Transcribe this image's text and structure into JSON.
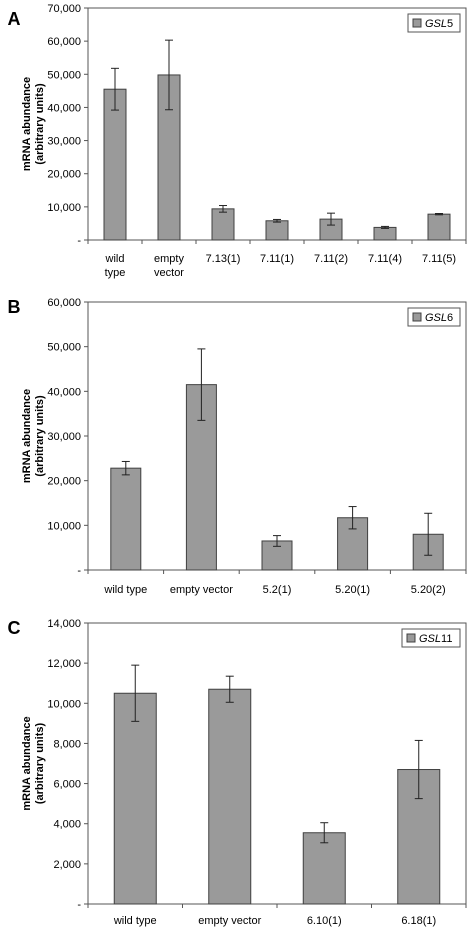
{
  "chart_data": [
    {
      "panel_label": "A",
      "type": "bar",
      "ylabel": [
        "mRNA abundance",
        "(arbitrary units)"
      ],
      "ylim": [
        0,
        70000
      ],
      "yticks": [
        0,
        10000,
        20000,
        30000,
        40000,
        50000,
        60000,
        70000
      ],
      "ytick_labels": [
        "-",
        "10,000",
        "20,000",
        "30,000",
        "40,000",
        "50,000",
        "60,000",
        "70,000"
      ],
      "categories": [
        "wild type",
        "empty vector",
        "7.13(1)",
        "7.11(1)",
        "7.11(2)",
        "7.11(4)",
        "7.11(5)"
      ],
      "series": [
        {
          "name": "GSL5",
          "values": [
            45500,
            49800,
            9400,
            5800,
            6300,
            3800,
            7800
          ],
          "errors": [
            6300,
            10500,
            1000,
            400,
            1800,
            300,
            200
          ]
        }
      ],
      "legend": {
        "italic": "GSL",
        "rest": "5",
        "position": "top-right"
      },
      "grid": false
    },
    {
      "panel_label": "B",
      "type": "bar",
      "ylabel": [
        "mRNA abundance",
        "(arbitrary units)"
      ],
      "ylim": [
        0,
        60000
      ],
      "yticks": [
        0,
        10000,
        20000,
        30000,
        40000,
        50000,
        60000
      ],
      "ytick_labels": [
        "-",
        "10,000",
        "20,000",
        "30,000",
        "40,000",
        "50,000",
        "60,000"
      ],
      "categories": [
        "wild type",
        "empty vector",
        "5.2(1)",
        "5.20(1)",
        "5.20(2)"
      ],
      "series": [
        {
          "name": "GSL6",
          "values": [
            22800,
            41500,
            6500,
            11700,
            8000
          ],
          "errors": [
            1500,
            8000,
            1200,
            2500,
            4700
          ]
        }
      ],
      "legend": {
        "italic": "GSL",
        "rest": "6",
        "position": "top-right"
      },
      "grid": false
    },
    {
      "panel_label": "C",
      "type": "bar",
      "ylabel": [
        "mRNA abundance",
        "(arbitrary units)"
      ],
      "ylim": [
        0,
        14000
      ],
      "yticks": [
        0,
        2000,
        4000,
        6000,
        8000,
        10000,
        12000,
        14000
      ],
      "ytick_labels": [
        "-",
        "2,000",
        "4,000",
        "6,000",
        "8,000",
        "10,000",
        "12,000",
        "14,000"
      ],
      "categories": [
        "wild type",
        "empty vector",
        "6.10(1)",
        "6.18(1)"
      ],
      "series": [
        {
          "name": "GSL11",
          "values": [
            10500,
            10700,
            3550,
            6700
          ],
          "errors": [
            1400,
            650,
            500,
            1450
          ]
        }
      ],
      "legend": {
        "italic": "GSL",
        "rest": "11",
        "position": "top-right"
      },
      "grid": false
    }
  ],
  "colors": {
    "bar_fill": "#9a9a9a",
    "bar_stroke": "#404040",
    "axis": "#555555",
    "text": "#000000"
  }
}
